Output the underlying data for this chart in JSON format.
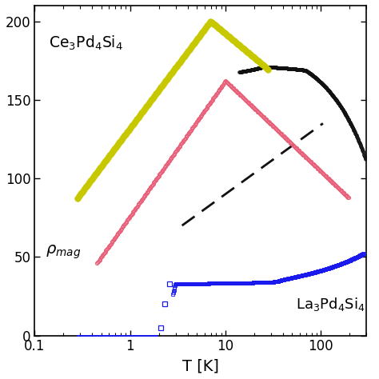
{
  "xlabel": "T [K]",
  "xlim": [
    0.1,
    300
  ],
  "ylim": [
    0,
    210
  ],
  "yticks": [
    0,
    50,
    100,
    150,
    200
  ],
  "label_Ce": "Ce$_3$Pd$_4$Si$_4$",
  "label_La": "La$_3$Pd$_4$Si$_4$",
  "label_rho": "$\\rho_{mag}$",
  "color_Ce_total": "#111111",
  "color_Ce_mag": "#e8607a",
  "color_Ce_yellow": "#c8c800",
  "color_La": "#1a1aee",
  "dash_color": "#111111"
}
